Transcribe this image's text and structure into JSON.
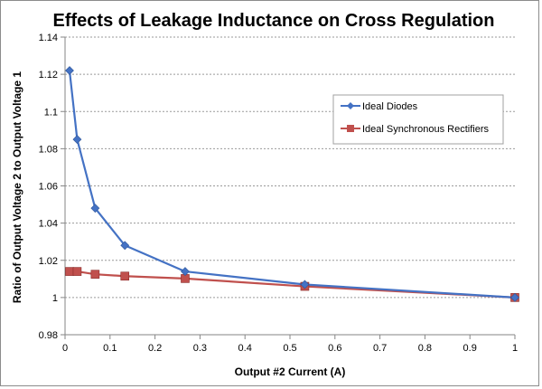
{
  "chart_data": {
    "type": "line",
    "title": "Effects of Leakage Inductance on Cross Regulation",
    "xlabel": "Output #2 Current (A)",
    "ylabel": "Ratio of Output Voltage 2 to Output Voltage 1",
    "xlim": [
      0,
      1
    ],
    "ylim": [
      0.98,
      1.14
    ],
    "x_ticks": [
      0,
      0.1,
      0.2,
      0.3,
      0.4,
      0.5,
      0.6,
      0.7,
      0.8,
      0.9,
      1
    ],
    "x_tick_labels": [
      "0",
      "0.1",
      "0.2",
      "0.3",
      "0.4",
      "0.5",
      "0.6",
      "0.7",
      "0.8",
      "0.9",
      "1"
    ],
    "y_ticks": [
      0.98,
      1,
      1.02,
      1.04,
      1.06,
      1.08,
      1.1,
      1.12,
      1.14
    ],
    "y_tick_labels": [
      "0.98",
      "1",
      "1.02",
      "1.04",
      "1.06",
      "1.08",
      "1.1",
      "1.12",
      "1.14"
    ],
    "grid": "horizontal",
    "legend_position": "right",
    "series": [
      {
        "name": "Ideal Diodes",
        "color": "#4472C4",
        "marker": "diamond",
        "x": [
          0.01,
          0.027,
          0.067,
          0.133,
          0.267,
          0.533,
          1.0
        ],
        "y": [
          1.122,
          1.085,
          1.048,
          1.028,
          1.014,
          1.007,
          1.0
        ]
      },
      {
        "name": "Ideal Synchronous Rectifiers",
        "color": "#C0504D",
        "marker": "square",
        "x": [
          0.01,
          0.027,
          0.067,
          0.133,
          0.267,
          0.533,
          1.0
        ],
        "y": [
          1.014,
          1.014,
          1.0125,
          1.0115,
          1.0102,
          1.006,
          1.0
        ]
      }
    ]
  }
}
